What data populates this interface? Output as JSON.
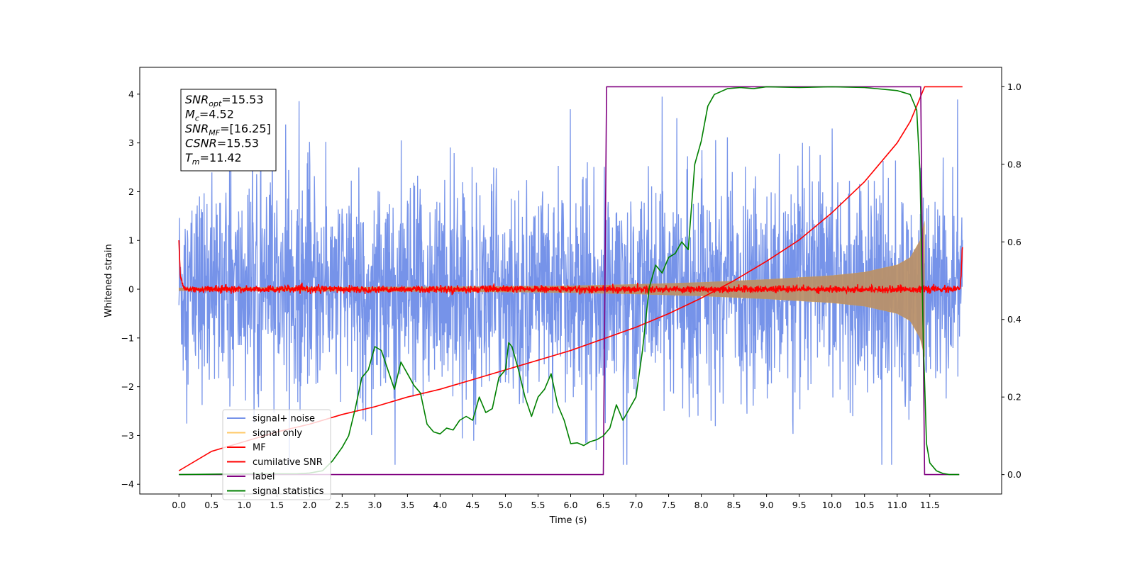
{
  "chart_data": {
    "type": "line",
    "xlabel": "Time (s)",
    "ylabel": "Whitened strain",
    "xlim": [
      -0.6,
      12.6
    ],
    "ylim": [
      -4.2,
      4.55
    ],
    "y2lim": [
      -0.05,
      1.05
    ],
    "x_ticks": [
      0.0,
      0.5,
      1.0,
      1.5,
      2.0,
      2.5,
      3.0,
      3.5,
      4.0,
      4.5,
      5.0,
      5.5,
      6.0,
      6.5,
      7.0,
      7.5,
      8.0,
      8.5,
      9.0,
      9.5,
      10.0,
      10.5,
      11.0,
      11.5
    ],
    "x_tick_labels": [
      "0.0",
      "0.5",
      "1.0",
      "1.5",
      "2.0",
      "2.5",
      "3.0",
      "3.5",
      "4.0",
      "4.5",
      "5.0",
      "5.5",
      "6.0",
      "6.5",
      "7.0",
      "7.5",
      "8.0",
      "8.5",
      "9.0",
      "9.5",
      "10.0",
      "10.5",
      "11.0",
      "11.5"
    ],
    "y_ticks": [
      -4,
      -3,
      -2,
      -1,
      0,
      1,
      2,
      3,
      4
    ],
    "y_tick_labels": [
      "−4",
      "−3",
      "−2",
      "−1",
      "0",
      "1",
      "2",
      "3",
      "4"
    ],
    "y2_ticks": [
      0.0,
      0.2,
      0.4,
      0.6,
      0.8,
      1.0
    ],
    "y2_tick_labels": [
      "0.0",
      "0.2",
      "0.4",
      "0.6",
      "0.8",
      "1.0"
    ],
    "grid": false,
    "legend_position": "lower-left",
    "series": [
      {
        "name": "signal+ noise",
        "color": "#4169e1",
        "axis": "left",
        "kind": "noise",
        "x_range": [
          0.0,
          12.0
        ],
        "amplitude_range": [
          -3.6,
          4.2
        ]
      },
      {
        "name": "signal only",
        "color": "#ffa500",
        "axis": "left",
        "kind": "chirp_envelope",
        "x": [
          0.0,
          2.0,
          4.0,
          6.0,
          7.0,
          8.0,
          9.0,
          10.0,
          10.5,
          11.0,
          11.2,
          11.35,
          11.42
        ],
        "envelope": [
          0.03,
          0.04,
          0.05,
          0.07,
          0.1,
          0.14,
          0.2,
          0.28,
          0.35,
          0.5,
          0.65,
          1.0,
          1.4
        ]
      },
      {
        "name": "MF",
        "color": "#ff0000",
        "axis": "left",
        "kind": "mf",
        "x": [
          0.0,
          0.02,
          0.05,
          0.1,
          11.96,
          11.98,
          12.0
        ],
        "y": [
          1.0,
          0.3,
          0.1,
          0.0,
          0.0,
          0.3,
          0.9
        ]
      },
      {
        "name": "cumilative SNR",
        "color": "#ff0000",
        "axis": "right",
        "x": [
          0.0,
          0.5,
          1.0,
          1.5,
          2.0,
          2.5,
          3.0,
          3.5,
          4.0,
          4.5,
          5.0,
          5.5,
          6.0,
          6.5,
          7.0,
          7.5,
          8.0,
          8.5,
          9.0,
          9.5,
          10.0,
          10.5,
          11.0,
          11.2,
          11.3,
          11.42,
          12.0
        ],
        "y": [
          0.01,
          0.06,
          0.085,
          0.11,
          0.13,
          0.155,
          0.175,
          0.2,
          0.22,
          0.245,
          0.27,
          0.295,
          0.32,
          0.35,
          0.38,
          0.415,
          0.455,
          0.5,
          0.55,
          0.605,
          0.675,
          0.755,
          0.855,
          0.91,
          0.95,
          1.0,
          1.0
        ]
      },
      {
        "name": "label",
        "color": "#800080",
        "axis": "right",
        "x": [
          0.0,
          6.5,
          6.55,
          11.36,
          11.42,
          11.95
        ],
        "y": [
          0.0,
          0.0,
          1.0,
          1.0,
          0.0,
          0.0
        ]
      },
      {
        "name": "signal statistics",
        "color": "#008000",
        "axis": "right",
        "x": [
          0.0,
          0.5,
          1.0,
          1.5,
          1.8,
          2.0,
          2.2,
          2.35,
          2.5,
          2.6,
          2.7,
          2.8,
          2.9,
          3.0,
          3.1,
          3.2,
          3.3,
          3.4,
          3.5,
          3.6,
          3.7,
          3.8,
          3.9,
          4.0,
          4.1,
          4.2,
          4.3,
          4.4,
          4.5,
          4.6,
          4.7,
          4.8,
          4.9,
          5.0,
          5.05,
          5.1,
          5.2,
          5.3,
          5.4,
          5.5,
          5.6,
          5.7,
          5.8,
          5.9,
          6.0,
          6.1,
          6.2,
          6.3,
          6.4,
          6.5,
          6.6,
          6.7,
          6.8,
          6.9,
          7.0,
          7.1,
          7.2,
          7.3,
          7.4,
          7.5,
          7.6,
          7.7,
          7.8,
          7.9,
          8.0,
          8.1,
          8.2,
          8.4,
          8.6,
          8.8,
          9.0,
          9.5,
          10.0,
          10.5,
          11.0,
          11.2,
          11.3,
          11.35,
          11.4,
          11.45,
          11.5,
          11.6,
          11.7,
          11.8,
          11.95
        ],
        "y": [
          0.0,
          0.001,
          0.002,
          0.002,
          0.002,
          0.004,
          0.01,
          0.035,
          0.07,
          0.1,
          0.17,
          0.25,
          0.27,
          0.33,
          0.32,
          0.27,
          0.22,
          0.29,
          0.26,
          0.23,
          0.21,
          0.13,
          0.11,
          0.105,
          0.12,
          0.115,
          0.14,
          0.15,
          0.14,
          0.2,
          0.16,
          0.17,
          0.25,
          0.27,
          0.34,
          0.33,
          0.27,
          0.2,
          0.15,
          0.2,
          0.22,
          0.26,
          0.18,
          0.14,
          0.08,
          0.082,
          0.075,
          0.085,
          0.09,
          0.1,
          0.12,
          0.18,
          0.14,
          0.17,
          0.2,
          0.32,
          0.48,
          0.54,
          0.52,
          0.56,
          0.57,
          0.6,
          0.58,
          0.8,
          0.86,
          0.95,
          0.98,
          0.995,
          0.998,
          0.995,
          1.0,
          0.998,
          1.0,
          0.998,
          0.99,
          0.98,
          0.94,
          0.78,
          0.35,
          0.08,
          0.03,
          0.01,
          0.003,
          0.0,
          0.0
        ]
      }
    ],
    "annotation": {
      "lines": [
        {
          "base": "SNR",
          "sub": "opt",
          "value": "=15.53"
        },
        {
          "base": "M",
          "sub": "c",
          "value": "=4.52"
        },
        {
          "base": "SNR",
          "sub": "MF",
          "value": "=[16.25]"
        },
        {
          "base": "CSNR",
          "sub": "",
          "value": "=15.53"
        },
        {
          "base": "T",
          "sub": "m",
          "value": "=11.42"
        }
      ]
    }
  }
}
